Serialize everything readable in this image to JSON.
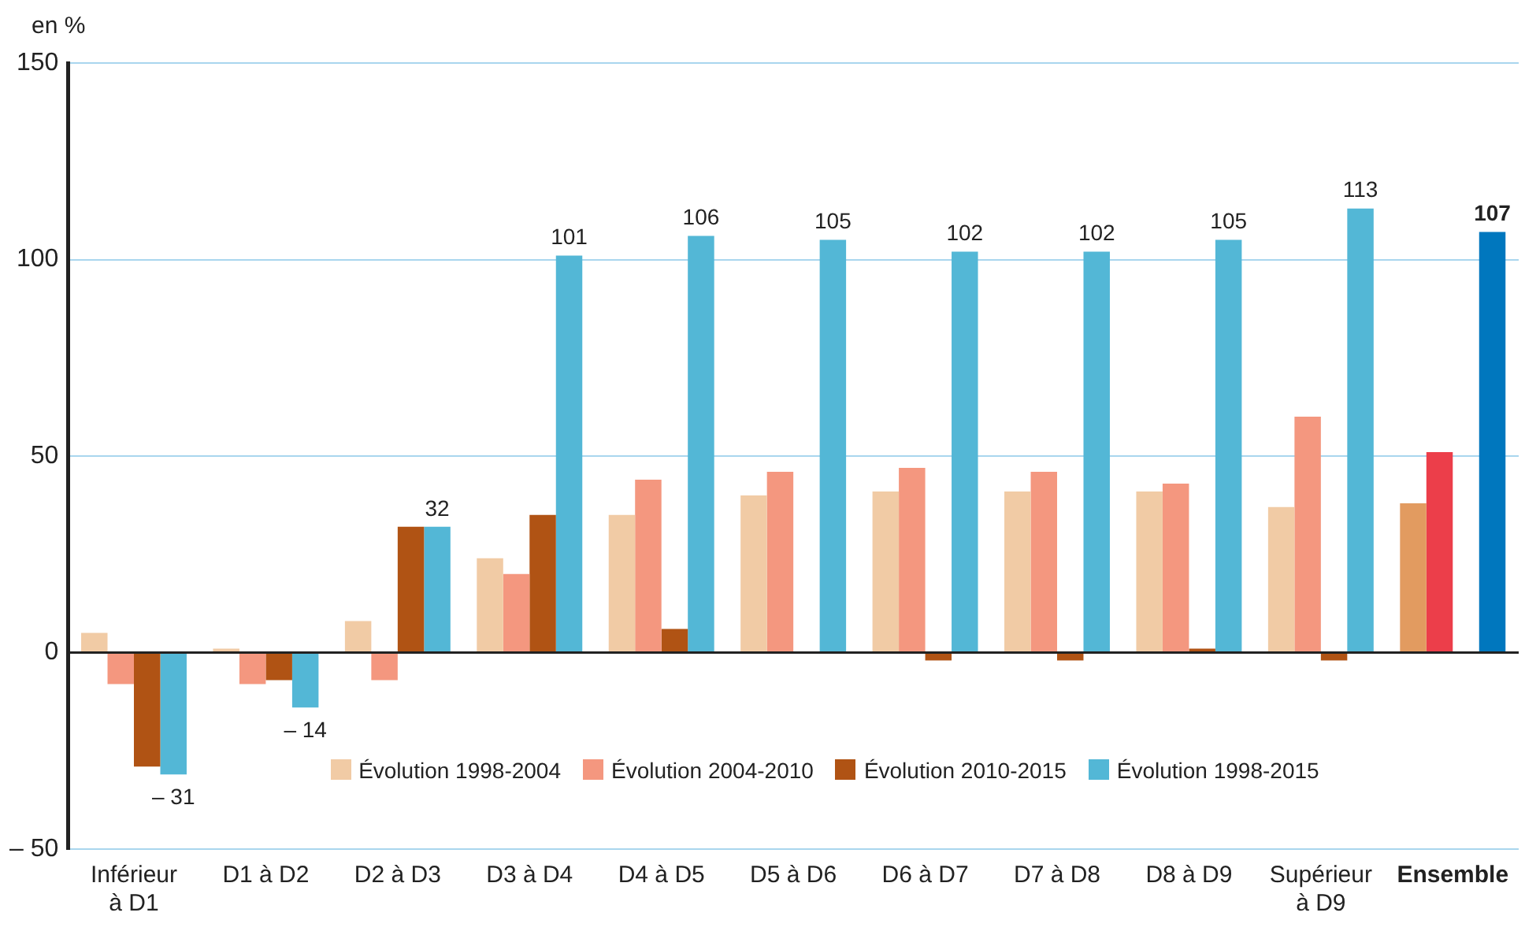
{
  "chart_data": {
    "type": "bar",
    "ylabel": "en %",
    "categories": [
      "Inférieur à D1",
      "D1 à D2",
      "D2 à D3",
      "D3 à D4",
      "D4 à D5",
      "D5 à D6",
      "D6 à D7",
      "D7 à D8",
      "D8 à D9",
      "Supérieur à D9",
      "Ensemble"
    ],
    "series": [
      {
        "name": "Évolution 1998-2004",
        "color": "#f1cba5",
        "colors": [
          "#f1cba5",
          "#f1cba5",
          "#f1cba5",
          "#f1cba5",
          "#f1cba5",
          "#f1cba5",
          "#f1cba5",
          "#f1cba5",
          "#f1cba5",
          "#f1cba5",
          "#e29b60"
        ],
        "values": [
          5,
          1,
          8,
          24,
          35,
          40,
          41,
          41,
          41,
          37,
          38
        ]
      },
      {
        "name": "Évolution 2004-2010",
        "color": "#f4977f",
        "colors": [
          "#f4977f",
          "#f4977f",
          "#f4977f",
          "#f4977f",
          "#f4977f",
          "#f4977f",
          "#f4977f",
          "#f4977f",
          "#f4977f",
          "#f4977f",
          "#ec3e4a"
        ],
        "values": [
          -8,
          -8,
          -7,
          20,
          44,
          46,
          47,
          46,
          43,
          60,
          51
        ]
      },
      {
        "name": "Évolution 2010-2015",
        "color": "#b05314",
        "values": [
          -29,
          -7,
          32,
          35,
          6,
          0,
          -2,
          -2,
          1,
          -2,
          0
        ]
      },
      {
        "name": "Évolution 1998-2015",
        "color": "#53b7d6",
        "colors": [
          "#53b7d6",
          "#53b7d6",
          "#53b7d6",
          "#53b7d6",
          "#53b7d6",
          "#53b7d6",
          "#53b7d6",
          "#53b7d6",
          "#53b7d6",
          "#53b7d6",
          "#0077be"
        ],
        "values": [
          -31,
          -14,
          32,
          101,
          106,
          105,
          102,
          102,
          105,
          113,
          107
        ],
        "value_labels": [
          "– 31",
          "– 14",
          "32",
          "101",
          "106",
          "105",
          "102",
          "102",
          "105",
          "113",
          "107"
        ]
      }
    ],
    "ylim": [
      -50,
      150
    ],
    "yticks": [
      {
        "value": -50,
        "label": "– 50"
      },
      0,
      50,
      100,
      150
    ],
    "grid": "y",
    "legend": "bottom"
  }
}
